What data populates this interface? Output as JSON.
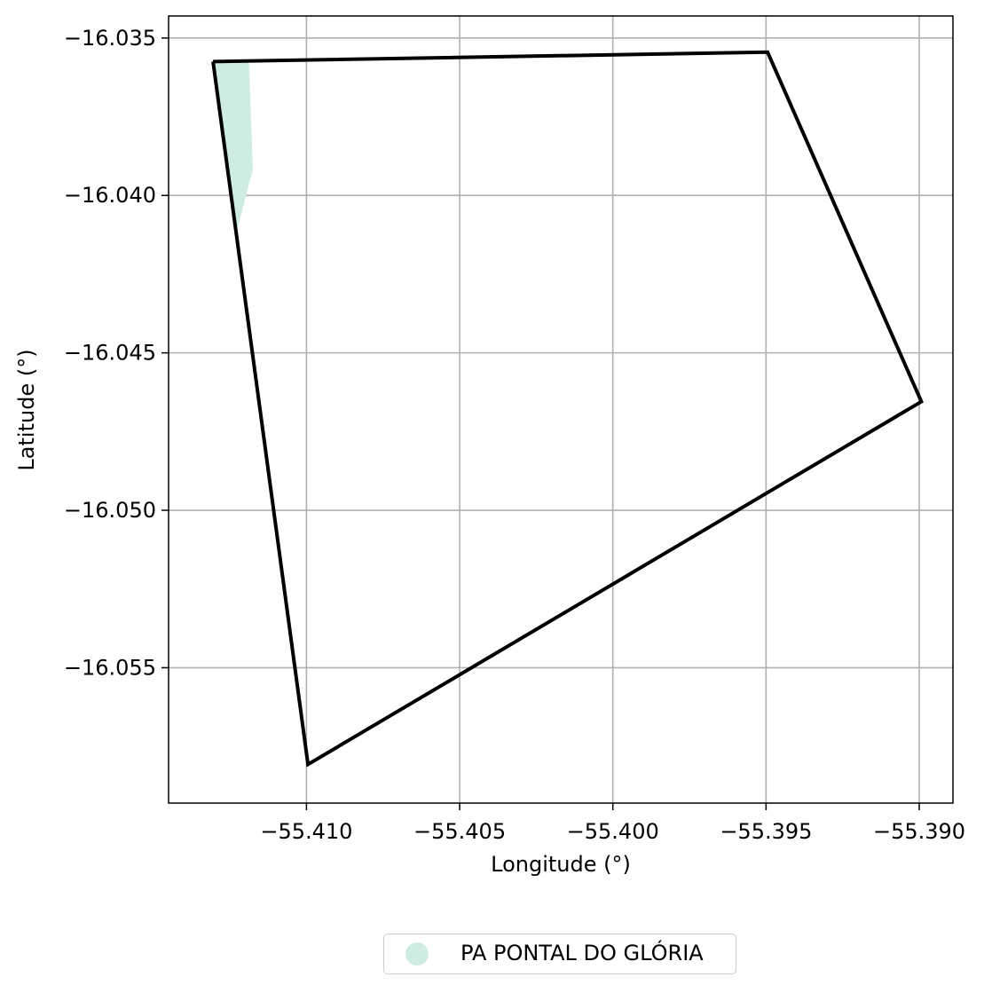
{
  "chart_data": {
    "type": "map",
    "title": "",
    "xlabel": "Longitude (°)",
    "ylabel": "Latitude (°)",
    "xlim": [
      -55.4145,
      -55.3889
    ],
    "ylim": [
      -16.0593,
      -16.0343
    ],
    "grid": true,
    "x_ticks": [
      -55.41,
      -55.405,
      -55.4,
      -55.395,
      -55.39
    ],
    "x_tick_labels": [
      "−55.410",
      "−55.405",
      "−55.400",
      "−55.395",
      "−55.390"
    ],
    "y_ticks": [
      -16.035,
      -16.04,
      -16.045,
      -16.05,
      -16.055
    ],
    "y_tick_labels": [
      "−16.035",
      "−16.040",
      "−16.045",
      "−16.050",
      "−16.055"
    ],
    "layers": [
      {
        "name": "PA PONTAL DO GLÓRIA",
        "kind": "filled-polygon",
        "color": "#cfece0",
        "coordinates": [
          [
            -55.41305,
            -16.03575
          ],
          [
            -55.41188,
            -16.03575
          ],
          [
            -55.41175,
            -16.03917
          ],
          [
            -55.41232,
            -16.04131
          ],
          [
            -55.41305,
            -16.03575
          ]
        ]
      },
      {
        "name": "",
        "kind": "outline",
        "color": "#000000",
        "coordinates": [
          [
            -55.41305,
            -16.03575
          ],
          [
            -55.39495,
            -16.03545
          ],
          [
            -55.38993,
            -16.04655
          ],
          [
            -55.40995,
            -16.05807
          ],
          [
            -55.41305,
            -16.03575
          ]
        ]
      }
    ],
    "legend": {
      "placement": "bottom-center",
      "entries": [
        {
          "label": "PA PONTAL DO GLÓRIA",
          "color": "#cfece0"
        }
      ]
    }
  }
}
